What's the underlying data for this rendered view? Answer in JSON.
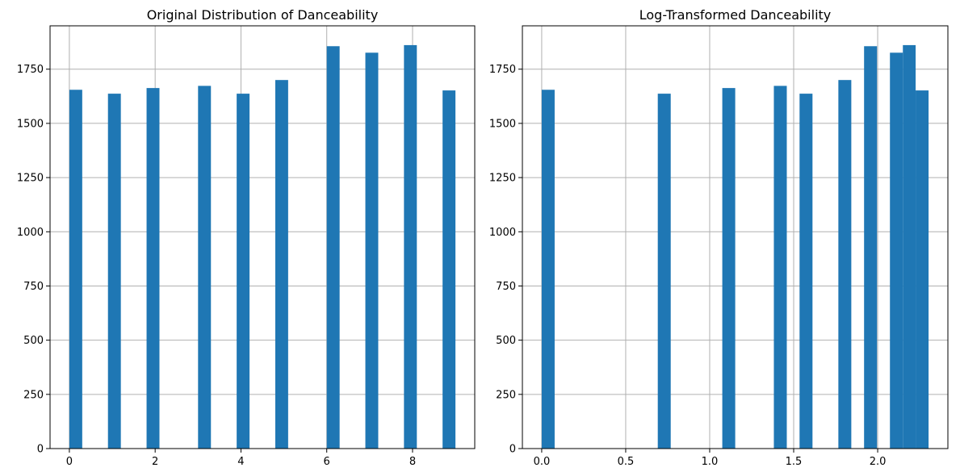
{
  "chart_data": [
    {
      "type": "bar",
      "title": "Original Distribution of Danceability",
      "xlabel": "",
      "ylabel": "",
      "xlim": [
        -0.45,
        9.45
      ],
      "ylim": [
        0,
        1950
      ],
      "xticks": [
        0,
        2,
        4,
        6,
        8
      ],
      "xtick_labels": [
        "0",
        "2",
        "4",
        "6",
        "8"
      ],
      "yticks": [
        0,
        250,
        500,
        750,
        1000,
        1250,
        1500,
        1750
      ],
      "ytick_labels": [
        "0",
        "250",
        "500",
        "750",
        "1000",
        "1250",
        "1500",
        "1750"
      ],
      "grid": true,
      "color": "#1f77b4",
      "bins": [
        {
          "x0": 0.0,
          "x1": 0.3,
          "count": 1655
        },
        {
          "x0": 0.9,
          "x1": 1.2,
          "count": 1637
        },
        {
          "x0": 1.8,
          "x1": 2.1,
          "count": 1663
        },
        {
          "x0": 3.0,
          "x1": 3.3,
          "count": 1673
        },
        {
          "x0": 3.9,
          "x1": 4.2,
          "count": 1637
        },
        {
          "x0": 4.8,
          "x1": 5.1,
          "count": 1700
        },
        {
          "x0": 6.0,
          "x1": 6.3,
          "count": 1856
        },
        {
          "x0": 6.9,
          "x1": 7.2,
          "count": 1826
        },
        {
          "x0": 7.8,
          "x1": 8.1,
          "count": 1861
        },
        {
          "x0": 8.7,
          "x1": 9.0,
          "count": 1652
        }
      ]
    },
    {
      "type": "bar",
      "title": "Log-Transformed Danceability",
      "xlabel": "",
      "ylabel": "",
      "xlim": [
        -0.115,
        2.418
      ],
      "ylim": [
        0,
        1950
      ],
      "xticks": [
        0.0,
        0.5,
        1.0,
        1.5,
        2.0
      ],
      "xtick_labels": [
        "0.0",
        "0.5",
        "1.0",
        "1.5",
        "2.0"
      ],
      "yticks": [
        0,
        250,
        500,
        750,
        1000,
        1250,
        1500,
        1750
      ],
      "ytick_labels": [
        "0",
        "250",
        "500",
        "750",
        "1000",
        "1250",
        "1500",
        "1750"
      ],
      "grid": true,
      "color": "#1f77b4",
      "bins": [
        {
          "x0": 0.0,
          "x1": 0.077,
          "count": 1655
        },
        {
          "x0": 0.691,
          "x1": 0.768,
          "count": 1637
        },
        {
          "x0": 1.075,
          "x1": 1.152,
          "count": 1663
        },
        {
          "x0": 1.382,
          "x1": 1.459,
          "count": 1673
        },
        {
          "x0": 1.535,
          "x1": 1.612,
          "count": 1637
        },
        {
          "x0": 1.766,
          "x1": 1.843,
          "count": 1700
        },
        {
          "x0": 1.919,
          "x1": 1.996,
          "count": 1856
        },
        {
          "x0": 2.073,
          "x1": 2.15,
          "count": 1826
        },
        {
          "x0": 2.15,
          "x1": 2.226,
          "count": 1861
        },
        {
          "x0": 2.226,
          "x1": 2.303,
          "count": 1652
        }
      ]
    }
  ]
}
